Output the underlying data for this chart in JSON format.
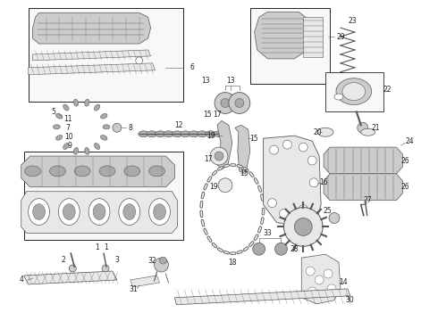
{
  "bg_color": "#ffffff",
  "line_color": "#555555",
  "dark_color": "#222222",
  "light_fill": "#e8e8e8",
  "mid_fill": "#cccccc",
  "dark_fill": "#aaaaaa",
  "box_fill": "#f8f8f8",
  "fig_width": 4.9,
  "fig_height": 3.6,
  "dpi": 100
}
